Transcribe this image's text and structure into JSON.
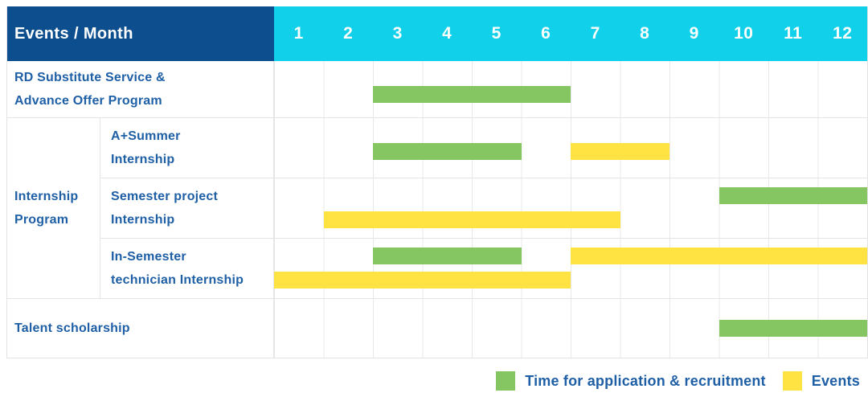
{
  "colors": {
    "header_bg": "#0d4e8e",
    "months_bg": "#10d1e9",
    "label_text": "#1e5fa6",
    "application": "#85c562",
    "event": "#ffe342",
    "grid": "#e8e8e8"
  },
  "chart_data": {
    "type": "table",
    "corner_header": "Events / Month",
    "x_categories": [
      "1",
      "2",
      "3",
      "4",
      "5",
      "6",
      "7",
      "8",
      "9",
      "10",
      "11",
      "12"
    ],
    "x_range": [
      1,
      12
    ],
    "grid": true,
    "legend_position": "bottom-right",
    "rows": [
      {
        "label": "RD Substitute Service &\nAdvance Offer Program",
        "group": null,
        "bars": [
          {
            "series": "application",
            "start_month": 3,
            "end_month": 6,
            "lane": "single"
          }
        ]
      },
      {
        "label": "A+Summer\nInternship",
        "group": "Internship\nProgram",
        "bars": [
          {
            "series": "application",
            "start_month": 3,
            "end_month": 5,
            "lane": "single"
          },
          {
            "series": "event",
            "start_month": 7,
            "end_month": 8,
            "lane": "single"
          }
        ]
      },
      {
        "label": "Semester project\nInternship",
        "group": "Internship\nProgram",
        "bars": [
          {
            "series": "application",
            "start_month": 10,
            "end_month": 12,
            "lane": "upper"
          },
          {
            "series": "event",
            "start_month": 2,
            "end_month": 7,
            "lane": "lower"
          }
        ]
      },
      {
        "label": "In-Semester\ntechnician Internship",
        "group": "Internship\nProgram",
        "bars": [
          {
            "series": "application",
            "start_month": 3,
            "end_month": 5,
            "lane": "upper"
          },
          {
            "series": "event",
            "start_month": 7,
            "end_month": 12,
            "lane": "upper"
          },
          {
            "series": "event",
            "start_month": 1,
            "end_month": 6,
            "lane": "lower"
          }
        ]
      },
      {
        "label": "Talent scholarship",
        "group": null,
        "bars": [
          {
            "series": "application",
            "start_month": 10,
            "end_month": 12,
            "lane": "center"
          }
        ]
      }
    ],
    "legend": [
      {
        "series": "application",
        "label": "Time for application & recruitment",
        "color": "#85c562"
      },
      {
        "series": "event",
        "label": "Events",
        "color": "#ffe342"
      }
    ]
  }
}
